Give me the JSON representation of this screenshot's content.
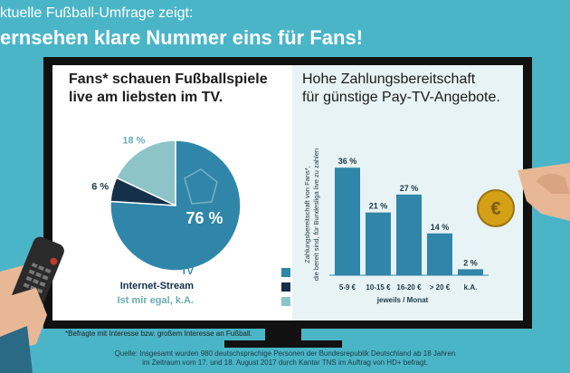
{
  "header": {
    "line1": "ktuelle Fußball-Umfrage zeigt:",
    "line2": "ernsehen klare Nummer eins für Fans!"
  },
  "left_panel": {
    "title_line1": "Fans* schauen Fußballspiele",
    "title_line2": "live am liebsten im TV.",
    "footnote": "*Befragte mit Interesse bzw. großem Interesse an Fußball."
  },
  "right_panel": {
    "title_line1": "Hohe Zahlungsbereitschaft",
    "title_line2": "für günstige Pay-TV-Angebote."
  },
  "source": {
    "line1": "Quelle: Insgesamt wurden 980 deutschsprachige Personen der Bundesrepublik Deutschland ab 18 Jahren",
    "line2": "im Zeitraum vom 17. und 18. August 2017 durch Kantar TNS im Auftrag von HD+ befragt."
  },
  "colors": {
    "background": "#4bb5c8",
    "tv": "#2f86a8",
    "stream": "#14304a",
    "egal": "#8cc4c8",
    "bar": "#2f86a8"
  },
  "chart_data": [
    {
      "type": "pie",
      "slices": [
        {
          "label": "TV",
          "value": 76,
          "value_label": "76 %",
          "color": "#2f86a8"
        },
        {
          "label": "Internet-Stream",
          "value": 6,
          "value_label": "6 %",
          "color": "#14304a"
        },
        {
          "label": "Ist mir egal, k.A.",
          "value": 18,
          "value_label": "18 %",
          "color": "#8cc4c8"
        }
      ]
    },
    {
      "type": "bar",
      "categories": [
        "5-9 €",
        "10-15 €",
        "16-20 €",
        "> 20 €",
        "k.A."
      ],
      "values": [
        36,
        21,
        27,
        14,
        2
      ],
      "value_labels": [
        "36 %",
        "21 %",
        "27 %",
        "14 %",
        "2 %"
      ],
      "xlabel": "jeweils / Monat",
      "ylabel_line1": "Zahlungsbereitschaft von Fans*,",
      "ylabel_line2": "die bereit sind, für Bundesliga live zu zahlen",
      "ylim": [
        0,
        40
      ]
    }
  ]
}
